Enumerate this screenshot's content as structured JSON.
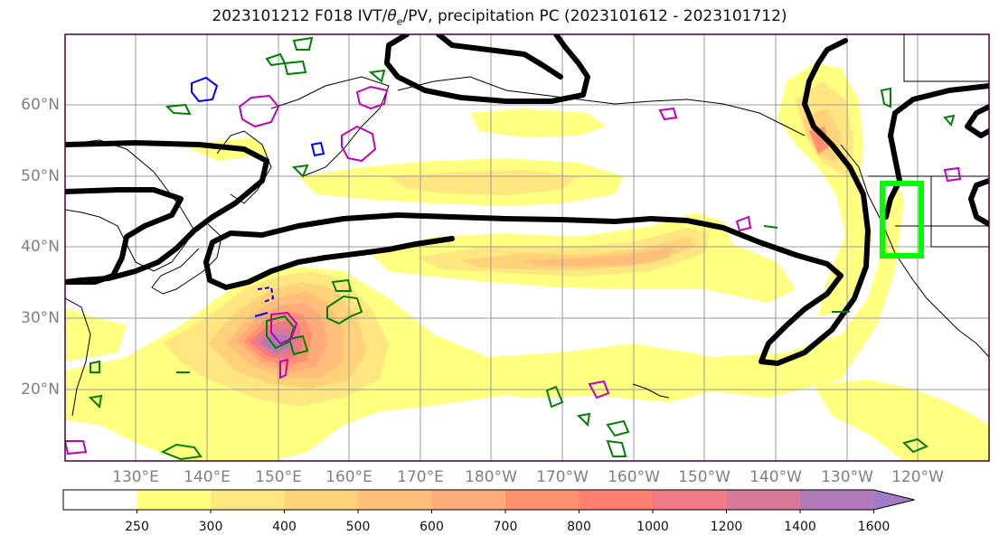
{
  "title": {
    "prefix": "2023101212 F018 IVT/",
    "theta": "θ",
    "theta_sub": "e",
    "suffix": "/PV, precipitation PC (2023101612 - 2023101712)"
  },
  "lat_labels": [
    "60°N",
    "50°N",
    "40°N",
    "30°N",
    "20°N"
  ],
  "lon_labels": [
    "130°E",
    "140°E",
    "150°E",
    "160°E",
    "170°E",
    "180°W",
    "170°W",
    "160°W",
    "150°W",
    "140°W",
    "130°W",
    "120°W"
  ],
  "colorbar": {
    "labels": [
      "250",
      "300",
      "400",
      "500",
      "600",
      "700",
      "800",
      "1000",
      "1200",
      "1400",
      "1600"
    ],
    "colors": [
      "#ffffff",
      "#ffff80",
      "#ffe680",
      "#ffd27a",
      "#ffbe7a",
      "#ffaa78",
      "#ff9070",
      "#ff8070",
      "#f07a85",
      "#d8789a",
      "#b07ab8",
      "#a07cc8"
    ],
    "extend": "max"
  },
  "colors": {
    "ivt_contour": "#000000",
    "theta_e": "#008000",
    "pv_positive": "#c000c0",
    "pv_negative": "#0000ff",
    "target_box": "#00ff00"
  }
}
